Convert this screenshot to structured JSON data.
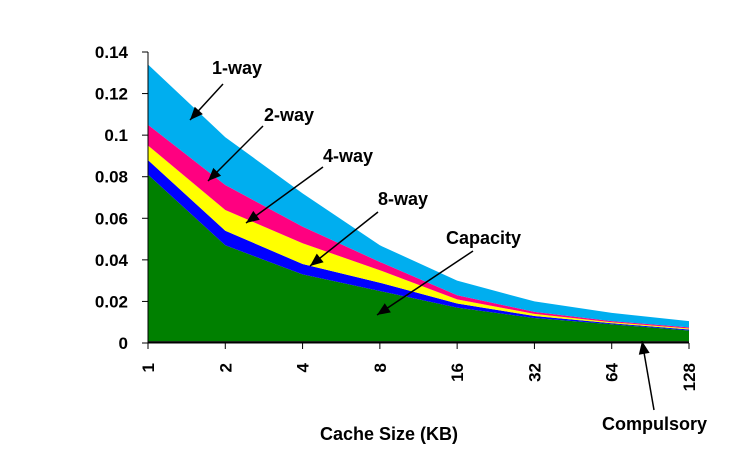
{
  "chart_data": {
    "type": "area",
    "stacked": true,
    "categories": [
      "1",
      "2",
      "4",
      "8",
      "16",
      "32",
      "64",
      "128"
    ],
    "xlabel": "Cache Size (KB)",
    "ylabel": "",
    "ylim": [
      0,
      0.14
    ],
    "yticks": [
      "0",
      "0.02",
      "0.04",
      "0.06",
      "0.08",
      "0.1",
      "0.12",
      "0.14"
    ],
    "grid": false,
    "series": [
      {
        "name": "Compulsory",
        "color": "#000000",
        "values": [
          0.0009,
          0.0009,
          0.0009,
          0.0009,
          0.0009,
          0.0009,
          0.0009,
          0.0009
        ]
      },
      {
        "name": "Capacity",
        "color": "#008000",
        "values": [
          0.0801,
          0.0461,
          0.0321,
          0.0241,
          0.0161,
          0.0111,
          0.0081,
          0.0051
        ]
      },
      {
        "name": "8-way",
        "color": "#0000ff",
        "values": [
          0.007,
          0.007,
          0.005,
          0.004,
          0.002,
          0.001,
          0.0005,
          0.0005
        ]
      },
      {
        "name": "4-way",
        "color": "#ffff00",
        "values": [
          0.007,
          0.01,
          0.01,
          0.006,
          0.002,
          0.001,
          0.0005,
          0.0005
        ]
      },
      {
        "name": "2-way",
        "color": "#ff0080",
        "values": [
          0.01,
          0.012,
          0.008,
          0.004,
          0.002,
          0.001,
          0.0005,
          0.0005
        ]
      },
      {
        "name": "1-way",
        "color": "#00aeef",
        "values": [
          0.029,
          0.023,
          0.016,
          0.008,
          0.007,
          0.005,
          0.004,
          0.003
        ]
      }
    ],
    "annotations": [
      {
        "text": "1-way"
      },
      {
        "text": "2-way"
      },
      {
        "text": "4-way"
      },
      {
        "text": "8-way"
      },
      {
        "text": "Capacity"
      },
      {
        "text": "Compulsory"
      }
    ]
  }
}
